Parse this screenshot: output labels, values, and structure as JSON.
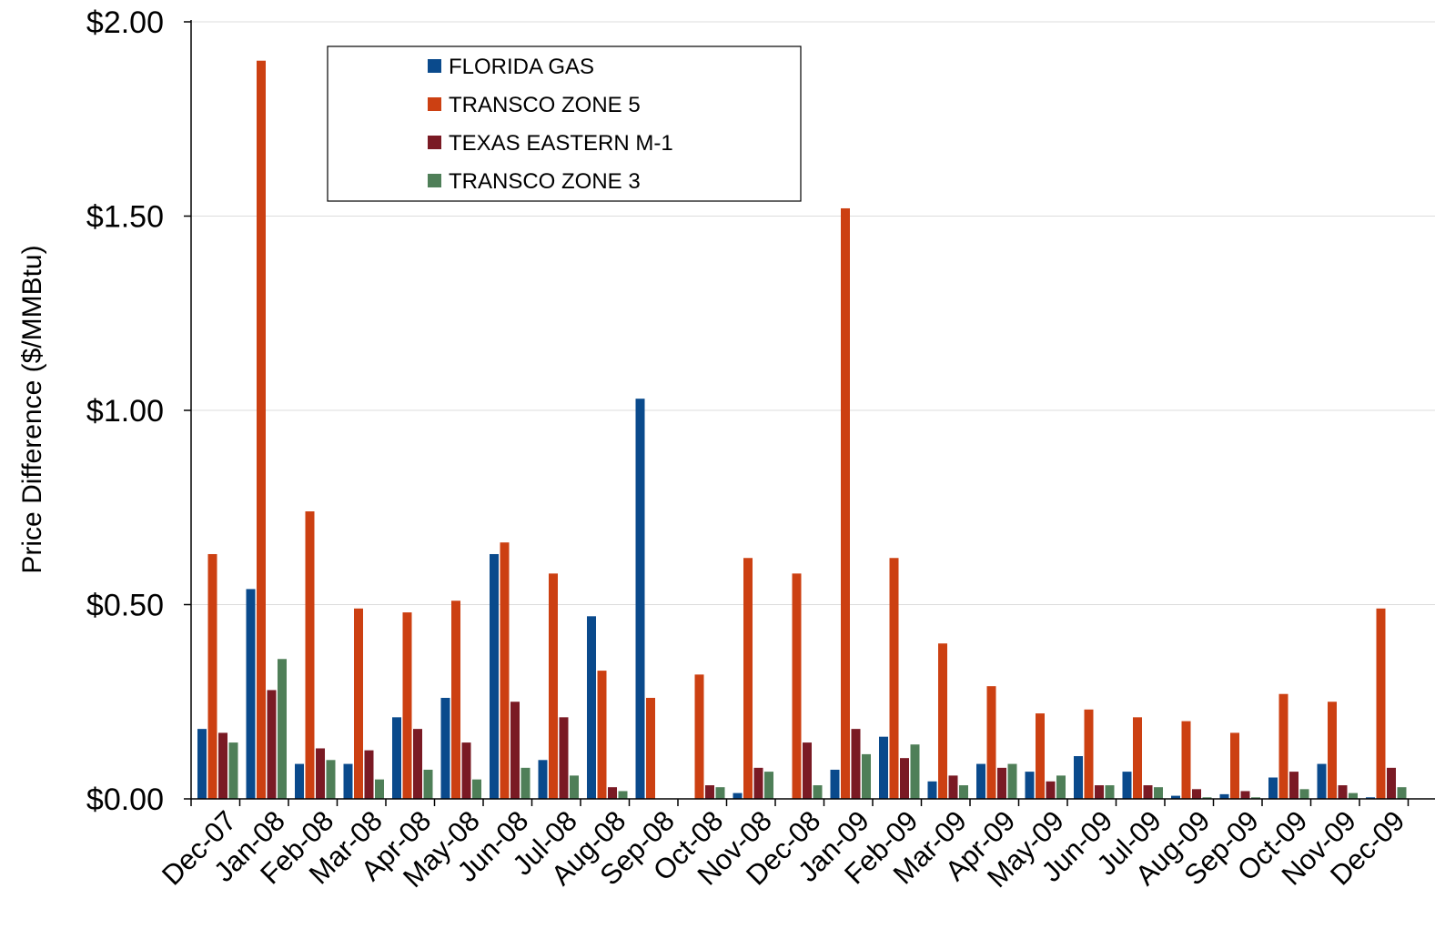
{
  "chart_data": {
    "type": "bar",
    "title": "",
    "xlabel": "",
    "ylabel": "Price Difference  ($/MMBtu)",
    "ylim": [
      0,
      2
    ],
    "yticks": [
      "$0.00",
      "$0.50",
      "$1.00",
      "$1.50",
      "$2.00"
    ],
    "ytick_values": [
      0,
      0.5,
      1.0,
      1.5,
      2.0
    ],
    "grid": true,
    "legend_position": "top-left",
    "categories": [
      "Dec-07",
      "Jan-08",
      "Feb-08",
      "Mar-08",
      "Apr-08",
      "May-08",
      "Jun-08",
      "Jul-08",
      "Aug-08",
      "Sep-08",
      "Oct-08",
      "Nov-08",
      "Dec-08",
      "Jan-09",
      "Feb-09",
      "Mar-09",
      "Apr-09",
      "May-09",
      "Jun-09",
      "Jul-09",
      "Aug-09",
      "Sep-09",
      "Oct-09",
      "Nov-09",
      "Dec-09"
    ],
    "series": [
      {
        "name": "FLORIDA GAS",
        "color": "#0a4a8c",
        "values": [
          0.18,
          0.54,
          0.09,
          0.09,
          0.21,
          0.26,
          0.63,
          0.1,
          0.47,
          1.03,
          0.0,
          0.015,
          0.0,
          0.075,
          0.16,
          0.045,
          0.09,
          0.07,
          0.11,
          0.07,
          0.008,
          0.012,
          0.055,
          0.09,
          0.004
        ]
      },
      {
        "name": "TRANSCO ZONE 5",
        "color": "#cc4012",
        "values": [
          0.63,
          1.9,
          0.74,
          0.49,
          0.48,
          0.51,
          0.66,
          0.58,
          0.33,
          0.26,
          0.32,
          0.62,
          0.58,
          1.52,
          0.62,
          0.4,
          0.29,
          0.22,
          0.23,
          0.21,
          0.2,
          0.17,
          0.27,
          0.25,
          0.49
        ]
      },
      {
        "name": "TEXAS EASTERN M-1",
        "color": "#7a1a24",
        "values": [
          0.17,
          0.28,
          0.13,
          0.125,
          0.18,
          0.145,
          0.25,
          0.21,
          0.03,
          0.0,
          0.035,
          0.08,
          0.145,
          0.18,
          0.105,
          0.06,
          0.08,
          0.045,
          0.035,
          0.035,
          0.025,
          0.02,
          0.07,
          0.035,
          0.08
        ]
      },
      {
        "name": "TRANSCO ZONE 3",
        "color": "#4f7f58",
        "values": [
          0.145,
          0.36,
          0.1,
          0.05,
          0.075,
          0.05,
          0.08,
          0.06,
          0.02,
          0.0,
          0.03,
          0.07,
          0.035,
          0.115,
          0.14,
          0.035,
          0.09,
          0.06,
          0.035,
          0.03,
          0.004,
          0.004,
          0.025,
          0.015,
          0.03
        ]
      }
    ]
  }
}
